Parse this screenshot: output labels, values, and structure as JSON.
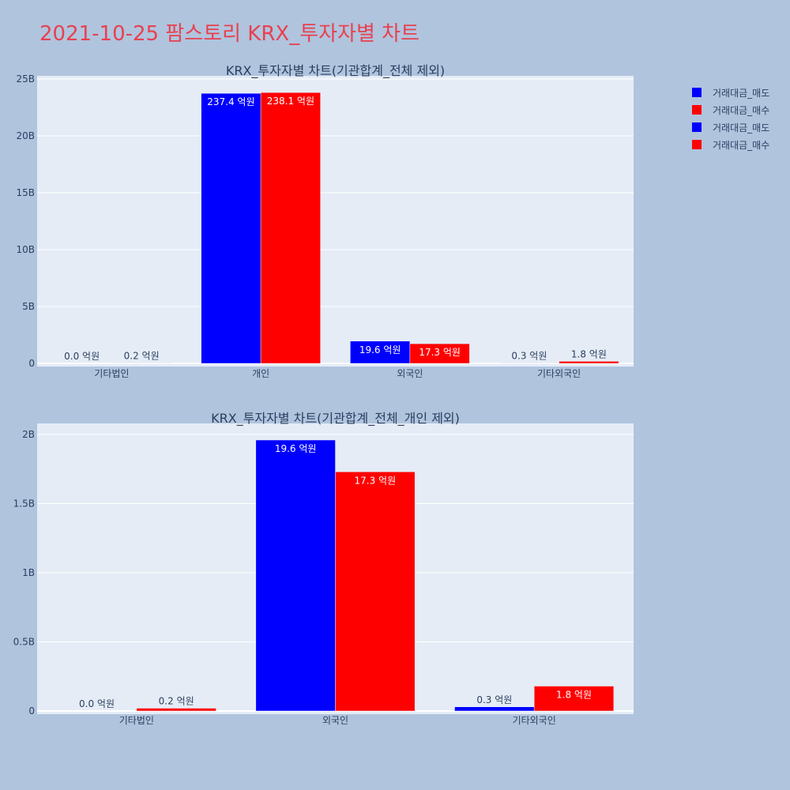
{
  "page": {
    "title": "2021-10-25 팜스토리 KRX_투자자별 차트"
  },
  "legend": {
    "items": [
      {
        "label": "거래대금_매도",
        "color": "#0000ff"
      },
      {
        "label": "거래대금_매수",
        "color": "#ff0000"
      },
      {
        "label": "거래대금_매도",
        "color": "#0000ff"
      },
      {
        "label": "거래대금_매수",
        "color": "#ff0000"
      }
    ]
  },
  "chart_data": [
    {
      "type": "bar",
      "title": "KRX_투자자별 차트(기관합계_전체 제외)",
      "categories": [
        "기타법인",
        "개인",
        "외국인",
        "기타외국인"
      ],
      "ylim": [
        0,
        25000000000
      ],
      "yticks": [
        0,
        5000000000,
        10000000000,
        15000000000,
        20000000000,
        25000000000
      ],
      "ytick_labels": [
        "0",
        "5B",
        "10B",
        "15B",
        "20B",
        "25B"
      ],
      "grid": true,
      "legend_position": "top-right",
      "series": [
        {
          "name": "거래대금_매도",
          "color": "#0000ff",
          "values": [
            0,
            23740000000,
            1960000000,
            30000000
          ],
          "labels": [
            "0.0 억원",
            "237.4 억원",
            "19.6 억원",
            "0.3 억원"
          ]
        },
        {
          "name": "거래대금_매수",
          "color": "#ff0000",
          "values": [
            20000000,
            23810000000,
            1730000000,
            180000000
          ],
          "labels": [
            "0.2 억원",
            "238.1 억원",
            "17.3 억원",
            "1.8 억원"
          ]
        }
      ]
    },
    {
      "type": "bar",
      "title": "KRX_투자자별 차트(기관합계_전체_개인 제외)",
      "categories": [
        "기타법인",
        "외국인",
        "기타외국인"
      ],
      "ylim": [
        0,
        2000000000
      ],
      "yticks": [
        0,
        500000000,
        1000000000,
        1500000000,
        2000000000
      ],
      "ytick_labels": [
        "0",
        "0.5B",
        "1B",
        "1.5B",
        "2B"
      ],
      "grid": true,
      "series": [
        {
          "name": "거래대금_매도",
          "color": "#0000ff",
          "values": [
            0,
            1960000000,
            30000000
          ],
          "labels": [
            "0.0 억원",
            "19.6 억원",
            "0.3 억원"
          ]
        },
        {
          "name": "거래대금_매수",
          "color": "#ff0000",
          "values": [
            20000000,
            1730000000,
            180000000
          ],
          "labels": [
            "0.2 억원",
            "17.3 억원",
            "1.8 억원"
          ]
        }
      ]
    }
  ]
}
